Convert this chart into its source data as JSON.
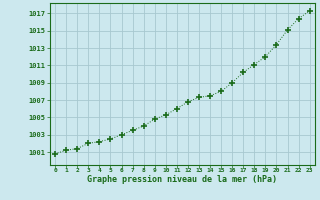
{
  "x": [
    0,
    1,
    2,
    3,
    4,
    5,
    6,
    7,
    8,
    9,
    10,
    11,
    12,
    13,
    14,
    15,
    16,
    17,
    18,
    19,
    20,
    21,
    22,
    23
  ],
  "y": [
    1000.8,
    1001.2,
    1001.4,
    1002.0,
    1002.2,
    1002.5,
    1003.0,
    1003.5,
    1004.0,
    1004.8,
    1005.3,
    1006.0,
    1006.8,
    1007.3,
    1007.5,
    1008.0,
    1009.0,
    1010.2,
    1011.1,
    1012.0,
    1013.4,
    1015.1,
    1016.4,
    1017.3
  ],
  "line_color": "#1a6b1a",
  "marker_color": "#1a6b1a",
  "bg_color": "#cce8ee",
  "grid_color": "#a8c8d0",
  "xlabel": "Graphe pression niveau de la mer (hPa)",
  "xlabel_color": "#1a6b1a",
  "tick_color": "#1a6b1a",
  "ylim_min": 999.5,
  "ylim_max": 1018.2,
  "yticks": [
    1001,
    1003,
    1005,
    1007,
    1009,
    1011,
    1013,
    1015,
    1017
  ],
  "xticks": [
    0,
    1,
    2,
    3,
    4,
    5,
    6,
    7,
    8,
    9,
    10,
    11,
    12,
    13,
    14,
    15,
    16,
    17,
    18,
    19,
    20,
    21,
    22,
    23
  ]
}
